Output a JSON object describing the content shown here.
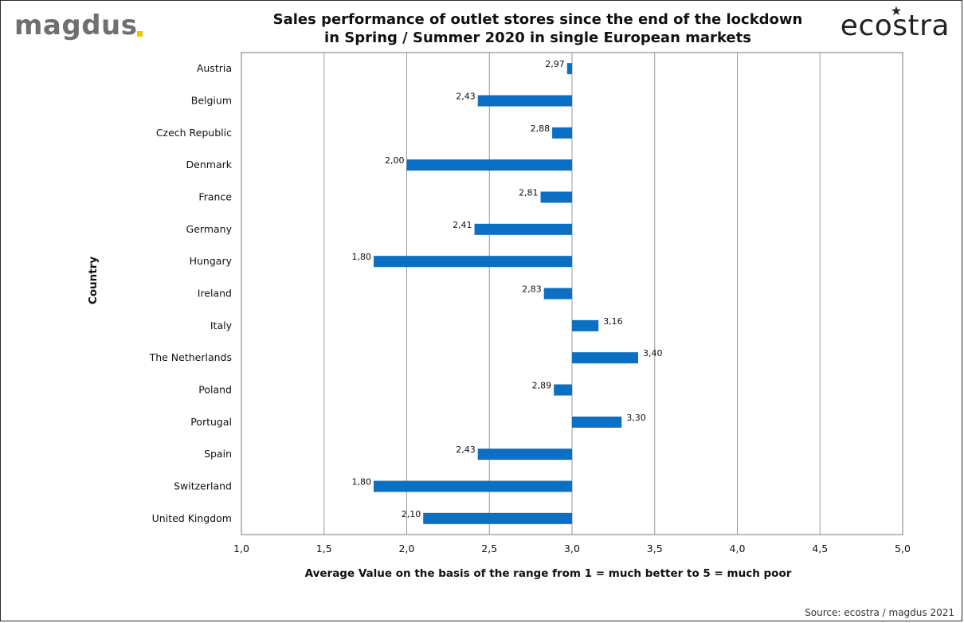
{
  "header": {
    "logo_left": "magdus",
    "logo_right": "ecostra",
    "title_line1": "Sales performance of outlet stores since the end of the lockdown",
    "title_line2": "in Spring / Summer 2020 in single European markets"
  },
  "footer": {
    "source": "Source: ecostra / magdus 2021"
  },
  "colors": {
    "bar": "#0b6fc4",
    "grid": "#9a9a9a",
    "accent_logo": "#f2c400"
  },
  "chart_data": {
    "type": "bar",
    "orientation": "horizontal",
    "baseline": 3.0,
    "categories": [
      "Austria",
      "Belgium",
      "Czech Republic",
      "Denmark",
      "France",
      "Germany",
      "Hungary",
      "Ireland",
      "Italy",
      "The Netherlands",
      "Poland",
      "Portugal",
      "Spain",
      "Switzerland",
      "United Kingdom"
    ],
    "values": [
      2.97,
      2.43,
      2.88,
      2.0,
      2.81,
      2.41,
      1.8,
      2.83,
      3.16,
      3.4,
      2.89,
      3.3,
      2.43,
      1.8,
      2.1
    ],
    "value_labels": [
      "2,97",
      "2,43",
      "2,88",
      "2,00",
      "2,81",
      "2,41",
      "1,80",
      "2,83",
      "3,16",
      "3,40",
      "2,89",
      "3,30",
      "2,43",
      "1,80",
      "2,10"
    ],
    "xlim": [
      1.0,
      5.0
    ],
    "xticks": [
      1.0,
      1.5,
      2.0,
      2.5,
      3.0,
      3.5,
      4.0,
      4.5,
      5.0
    ],
    "xtick_labels": [
      "1,0",
      "1,5",
      "2,0",
      "2,5",
      "3,0",
      "3,5",
      "4,0",
      "4,5",
      "5,0"
    ],
    "xlabel": "Average Value on the basis of the range from 1 = much better to 5 = much poor",
    "ylabel": "Country",
    "grid": true,
    "legend": "none"
  }
}
